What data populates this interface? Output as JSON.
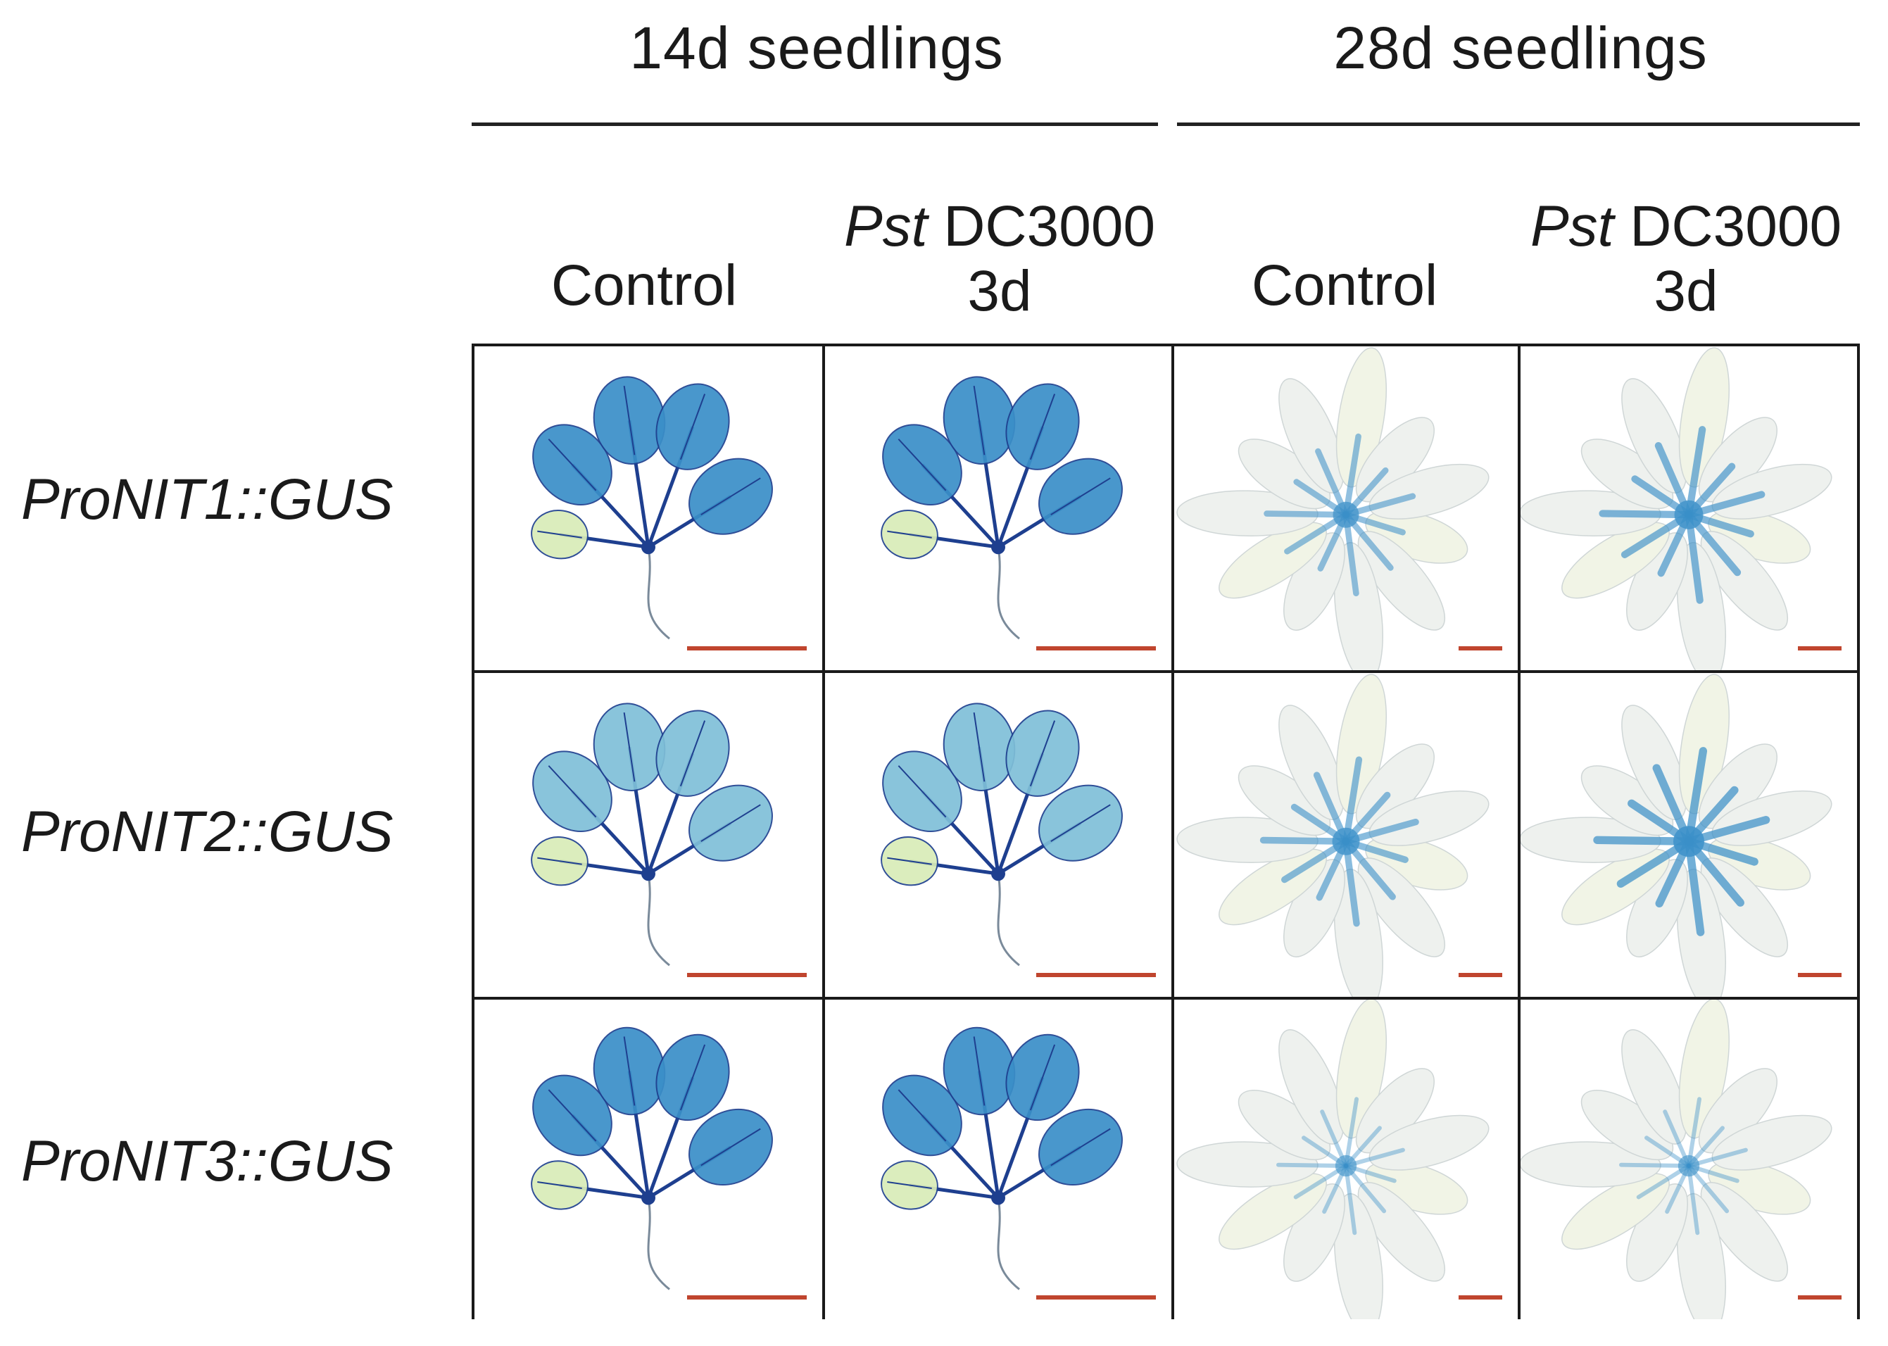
{
  "figure": {
    "groups": [
      {
        "title": "14d seedlings"
      },
      {
        "title": "28d seedlings"
      }
    ],
    "columns": [
      {
        "line1_italic": "",
        "line1_rest": "Control",
        "line2": ""
      },
      {
        "line1_italic": "Pst",
        "line1_rest": " DC3000",
        "line2": "3d"
      },
      {
        "line1_italic": "",
        "line1_rest": "Control",
        "line2": ""
      },
      {
        "line1_italic": "Pst",
        "line1_rest": " DC3000",
        "line2": "3d"
      }
    ],
    "rows": [
      {
        "label": "ProNIT1::GUS"
      },
      {
        "label": "ProNIT2::GUS"
      },
      {
        "label": "ProNIT3::GUS"
      }
    ],
    "colors": {
      "gus_blue_dark": "#1e3f8f",
      "gus_blue": "#3a8fc8",
      "gus_light": "#cfe8f2",
      "leaf_pale_green": "#d9ecb8",
      "rosette_pale": "#eef1ee",
      "scale_bar": "#c0452e",
      "border": "#1a1a1a"
    }
  }
}
